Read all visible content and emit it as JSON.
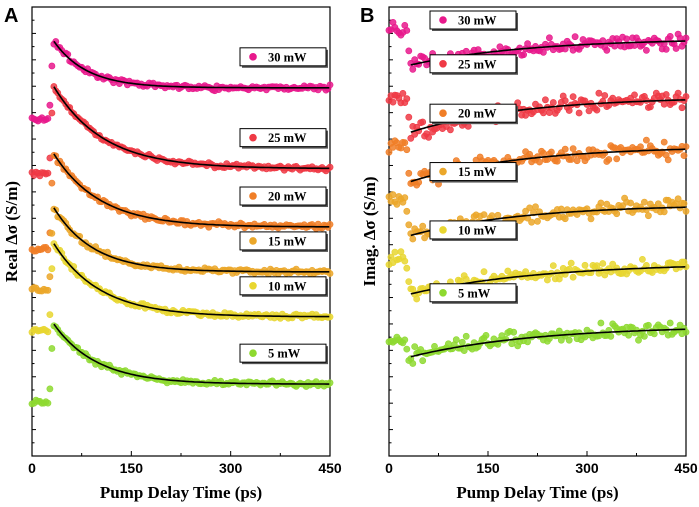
{
  "chart_data": [
    {
      "panel": "A",
      "type": "scatter",
      "xlabel": "Pump Delay Time (ps)",
      "ylabel": "Real Δσ (S/m)",
      "xlim": [
        0,
        450
      ],
      "x_ticks": [
        0,
        150,
        300,
        450
      ],
      "x_tick_labels": [
        "0",
        "150",
        "300",
        "450"
      ],
      "y_tick_labels": "none",
      "fit_line_color": "#000000",
      "series": [
        {
          "name": "30 mW",
          "color": "#e8198c",
          "baseline": 7.6,
          "pre_pulse": 7.5,
          "peak": 9.3,
          "plateau": 8.2,
          "tau_ps": 50
        },
        {
          "name": "25 mW",
          "color": "#ef3a45",
          "baseline": 5.5,
          "pre_pulse": 6.3,
          "peak": 8.3,
          "plateau": 6.4,
          "tau_ps": 75
        },
        {
          "name": "20 mW",
          "color": "#f07e27",
          "baseline": 4.6,
          "pre_pulse": 4.6,
          "peak": 6.8,
          "plateau": 5.1,
          "tau_ps": 70
        },
        {
          "name": "15 mW",
          "color": "#eba72a",
          "baseline": 3.6,
          "pre_pulse": 3.7,
          "peak": 5.6,
          "plateau": 4.1,
          "tau_ps": 60
        },
        {
          "name": "10 mW",
          "color": "#e8d630",
          "baseline": 2.6,
          "pre_pulse": 2.8,
          "peak": 4.8,
          "plateau": 3.1,
          "tau_ps": 70
        },
        {
          "name": "5 mW",
          "color": "#8ed930",
          "baseline": 1.2,
          "pre_pulse": 1.2,
          "peak": 3.0,
          "plateau": 1.6,
          "tau_ps": 65
        }
      ]
    },
    {
      "panel": "B",
      "type": "scatter",
      "xlabel": "Pump Delay Time (ps)",
      "ylabel": "Imag. Δσ (S/m)",
      "xlim": [
        0,
        450
      ],
      "x_ticks": [
        0,
        150,
        300,
        450
      ],
      "x_tick_labels": [
        "0",
        "150",
        "300",
        "450"
      ],
      "y_tick_labels": "none",
      "fit_line_color": "#000000",
      "series": [
        {
          "name": "30 mW",
          "color": "#e8198c",
          "baseline": 9.5,
          "pre_pulse": 9.5,
          "minimum": 8.7,
          "plateau": 9.3,
          "tau_ps": 180
        },
        {
          "name": "25 mW",
          "color": "#ef3a45",
          "baseline": 7.9,
          "pre_pulse": 8.0,
          "minimum": 7.2,
          "plateau": 8.0,
          "tau_ps": 170
        },
        {
          "name": "20 mW",
          "color": "#f07e27",
          "baseline": 6.9,
          "pre_pulse": 6.9,
          "minimum": 6.1,
          "plateau": 6.9,
          "tau_ps": 170
        },
        {
          "name": "15 mW",
          "color": "#eba72a",
          "baseline": 5.6,
          "pre_pulse": 5.7,
          "minimum": 4.9,
          "plateau": 5.6,
          "tau_ps": 170
        },
        {
          "name": "10 mW",
          "color": "#e8d630",
          "baseline": 4.3,
          "pre_pulse": 4.4,
          "minimum": 3.6,
          "plateau": 4.3,
          "tau_ps": 200
        },
        {
          "name": "5 mW",
          "color": "#8ed930",
          "baseline": 2.7,
          "pre_pulse": 2.6,
          "minimum": 2.2,
          "plateau": 2.9,
          "tau_ps": 190
        }
      ]
    }
  ]
}
